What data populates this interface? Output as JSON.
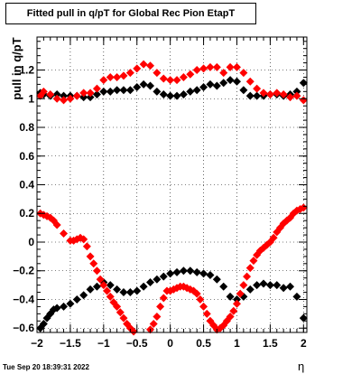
{
  "chart_data": {
    "type": "scatter",
    "title": "Fitted pull in q/pT for Global Rec Pion EtapT",
    "xlabel": "η",
    "ylabel": "pull in q/pT",
    "xlim": [
      -2.0,
      2.05
    ],
    "ylim": [
      -0.63,
      1.43
    ],
    "grid": true,
    "x_ticks": [
      -2,
      -1.5,
      -1,
      -0.5,
      0,
      0.5,
      1,
      1.5,
      2
    ],
    "x_tick_labels": [
      "−2",
      "−1.5",
      "−1",
      "−0.5",
      "0",
      "0.5",
      "1",
      "1.5",
      "2"
    ],
    "y_ticks": [
      -0.6,
      -0.4,
      -0.2,
      0,
      0.2,
      0.4,
      0.6,
      0.8,
      1,
      1.2
    ],
    "y_tick_labels": [
      "−0.6",
      "−0.4",
      "−0.2",
      "0",
      "0.2",
      "0.4",
      "0.6",
      "0.8",
      "1",
      "1.2"
    ],
    "series": [
      {
        "color": "#000000",
        "x": [
          -1.95,
          -1.9,
          -1.8,
          -1.7,
          -1.6,
          -1.5,
          -1.4,
          -1.3,
          -1.2,
          -1.1,
          -1.0,
          -0.9,
          -0.8,
          -0.7,
          -0.6,
          -0.5,
          -0.4,
          -0.3,
          -0.2,
          -0.1,
          0.0,
          0.1,
          0.2,
          0.3,
          0.4,
          0.5,
          0.6,
          0.7,
          0.8,
          0.9,
          1.0,
          1.1,
          1.2,
          1.3,
          1.4,
          1.5,
          1.6,
          1.7,
          1.8,
          1.9,
          2.0
        ],
        "y": [
          1.04,
          1.03,
          1.02,
          1.03,
          1.02,
          1.02,
          1.02,
          1.01,
          1.01,
          1.03,
          1.05,
          1.05,
          1.06,
          1.06,
          1.06,
          1.08,
          1.1,
          1.09,
          1.05,
          1.03,
          1.02,
          1.02,
          1.03,
          1.05,
          1.06,
          1.08,
          1.1,
          1.09,
          1.11,
          1.13,
          1.12,
          1.06,
          1.02,
          1.02,
          1.02,
          1.03,
          1.03,
          1.02,
          1.03,
          1.05,
          1.11
        ]
      },
      {
        "color": "#000000",
        "x": [
          -1.95,
          -1.9,
          -1.85,
          -1.8,
          -1.75,
          -1.7,
          -1.6,
          -1.5,
          -1.4,
          -1.3,
          -1.2,
          -1.1,
          -1.0,
          -0.9,
          -0.8,
          -0.7,
          -0.6,
          -0.5,
          -0.4,
          -0.3,
          -0.2,
          -0.1,
          0.0,
          0.1,
          0.2,
          0.3,
          0.4,
          0.5,
          0.6,
          0.7,
          0.8,
          0.9,
          1.0,
          1.1,
          1.2,
          1.3,
          1.4,
          1.5,
          1.6,
          1.7,
          1.8,
          1.9,
          2.0
        ],
        "y": [
          -0.6,
          -0.57,
          -0.53,
          -0.5,
          -0.47,
          -0.46,
          -0.45,
          -0.43,
          -0.4,
          -0.37,
          -0.33,
          -0.31,
          -0.28,
          -0.3,
          -0.33,
          -0.35,
          -0.35,
          -0.34,
          -0.31,
          -0.28,
          -0.26,
          -0.24,
          -0.22,
          -0.21,
          -0.2,
          -0.2,
          -0.21,
          -0.22,
          -0.23,
          -0.26,
          -0.31,
          -0.38,
          -0.4,
          -0.38,
          -0.33,
          -0.3,
          -0.29,
          -0.3,
          -0.3,
          -0.32,
          -0.31,
          -0.38,
          -0.53
        ]
      },
      {
        "color": "#ff0000",
        "x": [
          -1.95,
          -1.9,
          -1.8,
          -1.7,
          -1.6,
          -1.5,
          -1.4,
          -1.3,
          -1.2,
          -1.1,
          -1.0,
          -0.9,
          -0.8,
          -0.7,
          -0.6,
          -0.5,
          -0.4,
          -0.3,
          -0.2,
          -0.1,
          0.0,
          0.1,
          0.2,
          0.3,
          0.4,
          0.5,
          0.6,
          0.7,
          0.8,
          0.9,
          1.0,
          1.1,
          1.2,
          1.3,
          1.4,
          1.5,
          1.6,
          1.7,
          1.8,
          1.9,
          2.0
        ],
        "y": [
          1.02,
          1.05,
          1.03,
          1.0,
          0.99,
          1.0,
          1.02,
          1.04,
          1.04,
          1.07,
          1.13,
          1.15,
          1.15,
          1.16,
          1.18,
          1.21,
          1.24,
          1.23,
          1.18,
          1.14,
          1.13,
          1.13,
          1.15,
          1.17,
          1.2,
          1.21,
          1.22,
          1.22,
          1.18,
          1.22,
          1.22,
          1.18,
          1.12,
          1.07,
          1.04,
          1.03,
          1.04,
          1.03,
          1.01,
          1.02,
          0.99
        ]
      },
      {
        "color": "#ff0000",
        "x": [
          -1.95,
          -1.9,
          -1.85,
          -1.8,
          -1.75,
          -1.7,
          -1.6,
          -1.5,
          -1.45,
          -1.4,
          -1.35,
          -1.3,
          -1.25,
          -1.2,
          -1.15,
          -1.1,
          -1.05,
          -1.0,
          -0.95,
          -0.9,
          -0.85,
          -0.8,
          -0.75,
          -0.7,
          -0.65,
          -0.6,
          -0.55,
          -0.3,
          -0.25,
          -0.2,
          -0.15,
          -0.1,
          -0.05,
          0.0,
          0.05,
          0.1,
          0.15,
          0.2,
          0.25,
          0.3,
          0.35,
          0.4,
          0.45,
          0.5,
          0.55,
          0.6,
          0.65,
          0.7,
          0.75,
          0.8,
          0.85,
          0.9,
          0.95,
          1.0,
          1.05,
          1.1,
          1.15,
          1.2,
          1.25,
          1.3,
          1.35,
          1.4,
          1.45,
          1.5,
          1.55,
          1.6,
          1.65,
          1.7,
          1.75,
          1.8,
          1.85,
          1.9,
          1.95,
          2.0
        ],
        "y": [
          0.2,
          0.19,
          0.18,
          0.17,
          0.15,
          0.12,
          0.06,
          0.01,
          0.01,
          0.02,
          0.03,
          0.02,
          -0.03,
          -0.1,
          -0.15,
          -0.2,
          -0.26,
          -0.3,
          -0.34,
          -0.38,
          -0.42,
          -0.45,
          -0.49,
          -0.53,
          -0.57,
          -0.6,
          -0.64,
          -0.61,
          -0.57,
          -0.52,
          -0.45,
          -0.39,
          -0.34,
          -0.34,
          -0.33,
          -0.32,
          -0.31,
          -0.31,
          -0.32,
          -0.33,
          -0.34,
          -0.36,
          -0.4,
          -0.45,
          -0.5,
          -0.55,
          -0.58,
          -0.61,
          -0.6,
          -0.58,
          -0.55,
          -0.52,
          -0.48,
          -0.43,
          -0.36,
          -0.3,
          -0.24,
          -0.18,
          -0.13,
          -0.09,
          -0.06,
          -0.04,
          -0.02,
          0.0,
          0.03,
          0.07,
          0.1,
          0.13,
          0.15,
          0.17,
          0.2,
          0.22,
          0.23,
          0.24
        ]
      }
    ]
  },
  "footer": {
    "date": "Tue Sep 20 18:39:31 2022"
  }
}
